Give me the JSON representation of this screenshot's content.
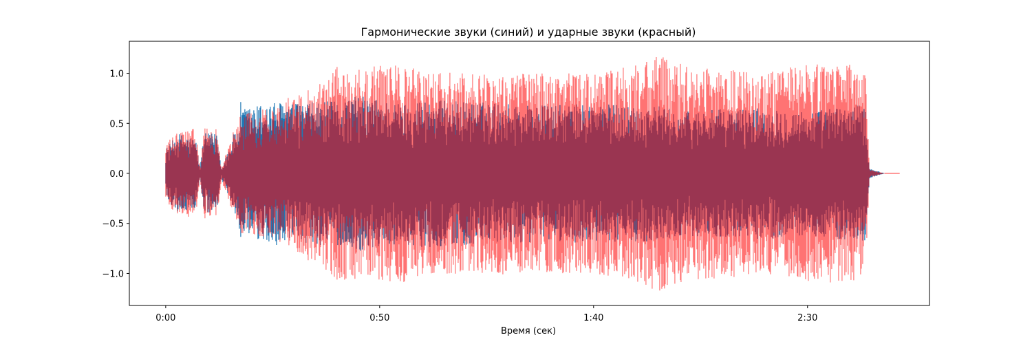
{
  "chart_data": {
    "type": "line",
    "title": "Гармонические звуки (синий) и ударные звуки (красный)",
    "xlabel": "Время (сек)",
    "ylabel": "",
    "xlim": [
      -8.5,
      178.5
    ],
    "ylim": [
      -1.32,
      1.32
    ],
    "x_ticks": [
      {
        "value": 0,
        "label": "0:00"
      },
      {
        "value": 50,
        "label": "0:50"
      },
      {
        "value": 100,
        "label": "1:40"
      },
      {
        "value": 150,
        "label": "2:30"
      }
    ],
    "y_ticks": [
      {
        "value": 1.0,
        "label": "1.0"
      },
      {
        "value": 0.5,
        "label": "0.5"
      },
      {
        "value": 0.0,
        "label": "0.0"
      },
      {
        "value": -0.5,
        "label": "−0.5"
      },
      {
        "value": -1.0,
        "label": "−1.0"
      }
    ],
    "grid": false,
    "series": [
      {
        "color": "#1f77b4",
        "opacity": 1.0,
        "envelope": {
          "t": [
            0,
            3,
            7,
            8,
            9,
            12,
            13,
            16,
            17,
            17.5,
            18,
            25,
            30,
            37,
            40,
            45,
            55,
            60,
            70,
            80,
            90,
            100,
            110,
            115,
            120,
            130,
            140,
            150,
            160,
            163.5,
            164.5,
            168
          ],
          "amp": [
            0.25,
            0.4,
            0.35,
            0.05,
            0.4,
            0.4,
            0.05,
            0.4,
            0.45,
            0.72,
            0.65,
            0.72,
            0.7,
            0.72,
            0.72,
            0.78,
            0.7,
            0.74,
            0.72,
            0.7,
            0.68,
            0.7,
            0.68,
            0.68,
            0.62,
            0.64,
            0.66,
            0.62,
            0.68,
            0.68,
            0.05,
            0.0
          ]
        }
      },
      {
        "color": "#ff0000",
        "opacity": 0.55,
        "envelope": {
          "t": [
            0,
            3,
            7,
            8,
            9,
            12,
            13,
            16,
            17,
            17.5,
            18,
            25,
            30,
            37,
            40,
            45,
            55,
            60,
            70,
            80,
            90,
            100,
            110,
            115,
            120,
            130,
            140,
            150,
            160,
            163.5,
            164.5,
            168
          ],
          "amp": [
            0.3,
            0.42,
            0.45,
            0.06,
            0.45,
            0.45,
            0.06,
            0.45,
            0.5,
            0.62,
            0.6,
            0.66,
            0.8,
            0.95,
            1.08,
            1.05,
            1.1,
            1.02,
            1.0,
            1.02,
            1.0,
            1.0,
            1.08,
            1.18,
            1.1,
            1.05,
            1.0,
            1.1,
            1.1,
            0.98,
            0.04,
            0.0
          ]
        }
      }
    ]
  }
}
